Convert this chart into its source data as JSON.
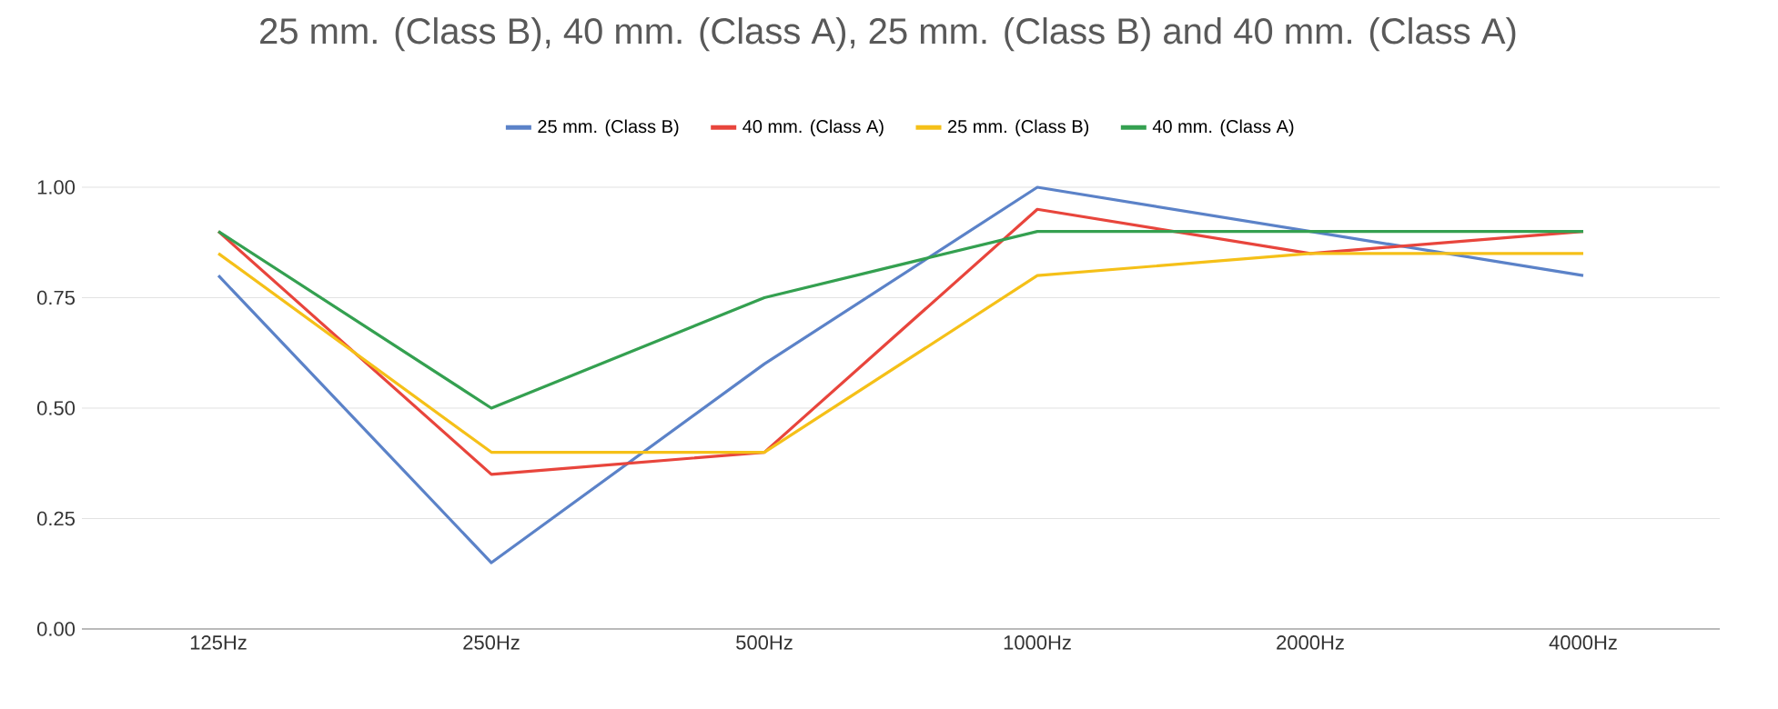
{
  "chart_data": {
    "type": "line",
    "title": "25 mm. (Class B), 40 mm. (Class A), 25 mm. (Class B) and 40 mm. (Class A)",
    "categories": [
      "125Hz",
      "250Hz",
      "500Hz",
      "1000Hz",
      "2000Hz",
      "4000Hz"
    ],
    "series": [
      {
        "name": "25 mm. (Class B)",
        "color": "#5b82c8",
        "values": [
          0.8,
          0.15,
          0.6,
          1.0,
          0.9,
          0.8
        ]
      },
      {
        "name": "40 mm. (Class A)",
        "color": "#e8453c",
        "values": [
          0.9,
          0.35,
          0.4,
          0.95,
          0.85,
          0.9
        ]
      },
      {
        "name": "25 mm. (Class B)",
        "color": "#f5c018",
        "values": [
          0.85,
          0.4,
          0.4,
          0.8,
          0.85,
          0.85
        ]
      },
      {
        "name": "40 mm. (Class A)",
        "color": "#34a050",
        "values": [
          0.9,
          0.5,
          0.75,
          0.9,
          0.9,
          0.9
        ]
      }
    ],
    "ylim": [
      0,
      1
    ],
    "yticks": [
      {
        "value": 0,
        "label": "0.00"
      },
      {
        "value": 0.25,
        "label": "0.25"
      },
      {
        "value": 0.5,
        "label": "0.50"
      },
      {
        "value": 0.75,
        "label": "0.75"
      },
      {
        "value": 1,
        "label": "1.00"
      }
    ],
    "grid": "y",
    "legend": "top",
    "marker": "none",
    "line_style": "solid"
  }
}
